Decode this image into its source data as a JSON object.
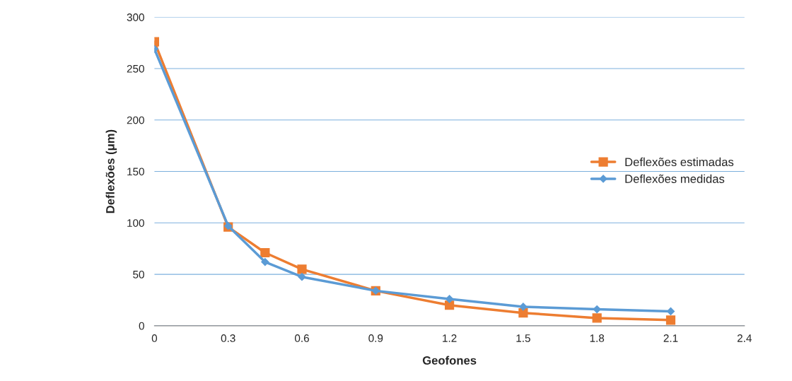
{
  "chart_data": {
    "type": "line",
    "xlabel": "Geofones",
    "ylabel": "Deflexões (μm)",
    "x": [
      0,
      0.3,
      0.45,
      0.6,
      0.9,
      1.2,
      1.5,
      1.8,
      2.1
    ],
    "series": [
      {
        "name": "Deflexões estimadas",
        "color": "#ed7d31",
        "marker": "square",
        "values": [
          276,
          96,
          71,
          55,
          34,
          20,
          12.5,
          7.5,
          5.5
        ]
      },
      {
        "name": "Deflexões medidas",
        "color": "#5b9bd5",
        "marker": "diamond",
        "values": [
          269,
          97,
          62,
          47.5,
          34,
          26,
          18.5,
          16,
          14
        ]
      }
    ],
    "xlim": [
      0,
      2.4
    ],
    "xticks": [
      0,
      0.3,
      0.6,
      0.9,
      1.2,
      1.5,
      1.8,
      2.1,
      2.4
    ],
    "ylim": [
      0,
      300
    ],
    "yticks": [
      0,
      50,
      100,
      150,
      200,
      250,
      300
    ],
    "grid": "y",
    "legend": "right",
    "line_style": "solid"
  }
}
